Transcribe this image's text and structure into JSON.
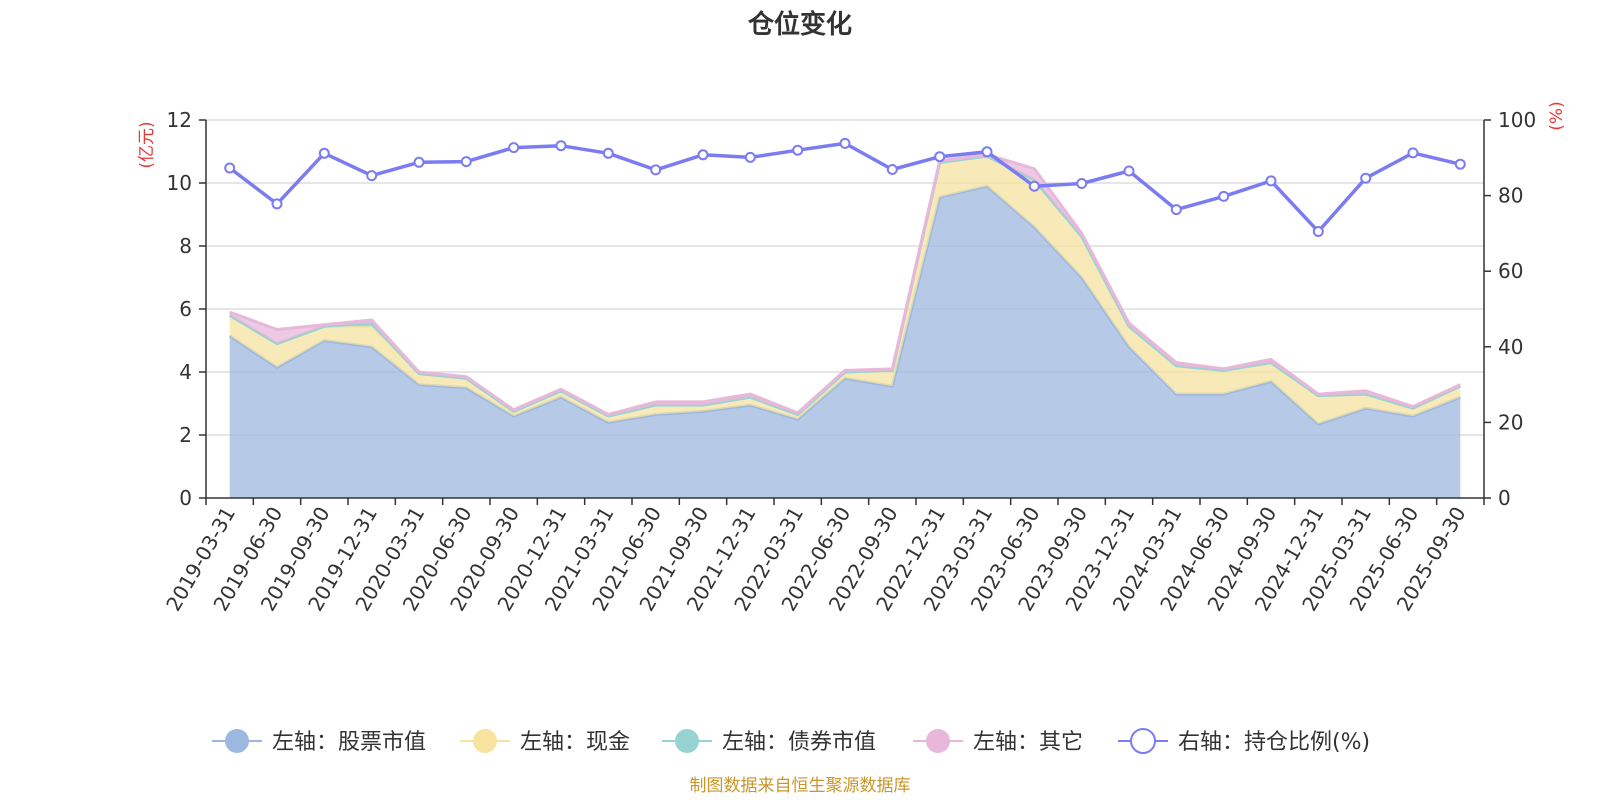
{
  "chart_data": {
    "type": "area+line",
    "title": "仓位变化",
    "source": "制图数据来自恒生聚源数据库",
    "y_left": {
      "unit": "(亿元)",
      "range": [
        0,
        12
      ],
      "ticks": [
        "0",
        "2",
        "4",
        "6",
        "8",
        "10",
        "12"
      ]
    },
    "y_right": {
      "unit": "(%)",
      "range": [
        0,
        100
      ],
      "ticks": [
        "0",
        "20",
        "40",
        "60",
        "80",
        "100"
      ]
    },
    "x_labels": [
      "2019-03-31",
      "2019-06-30",
      "2019-09-30",
      "2019-12-31",
      "2020-03-31",
      "2020-06-30",
      "2020-09-30",
      "2020-12-31",
      "2021-03-31",
      "2021-06-30",
      "2021-09-30",
      "2021-12-31",
      "2022-03-31",
      "2022-06-30",
      "2022-09-30",
      "2022-12-31",
      "2023-03-31",
      "2023-06-30",
      "2023-09-30",
      "2023-12-31",
      "2024-03-31",
      "2024-06-30",
      "2024-09-30",
      "2024-12-31",
      "2025-03-31",
      "2025-06-30",
      "2025-09-30"
    ],
    "series": [
      {
        "name": "左轴：股票市值",
        "axis": "left",
        "type": "area",
        "color": "#9db8e0",
        "values": [
          5.15,
          4.15,
          5.0,
          4.8,
          3.6,
          3.5,
          2.6,
          3.2,
          2.4,
          2.65,
          2.75,
          2.95,
          2.5,
          3.8,
          3.55,
          9.55,
          9.9,
          8.6,
          7.0,
          4.8,
          3.3,
          3.3,
          3.7,
          2.35,
          2.85,
          2.6,
          3.2
        ]
      },
      {
        "name": "左轴：现金",
        "axis": "left",
        "type": "area",
        "color": "#f6e3a0",
        "values": [
          0.65,
          0.75,
          0.45,
          0.65,
          0.35,
          0.3,
          0.15,
          0.2,
          0.2,
          0.3,
          0.2,
          0.25,
          0.15,
          0.2,
          0.5,
          1.1,
          0.95,
          1.5,
          1.3,
          0.65,
          0.9,
          0.75,
          0.6,
          0.9,
          0.45,
          0.25,
          0.35
        ]
      },
      {
        "name": "左轴：债券市值",
        "axis": "left",
        "type": "area",
        "color": "#97d3d3",
        "values": [
          0,
          0,
          0,
          0.1,
          0,
          0,
          0,
          0,
          0,
          0,
          0,
          0,
          0,
          0,
          0,
          0,
          0,
          0,
          0,
          0,
          0,
          0,
          0,
          0,
          0,
          0,
          0
        ]
      },
      {
        "name": "左轴：其它",
        "axis": "left",
        "type": "area",
        "color": "#e8b7da",
        "values": [
          0.1,
          0.45,
          0.05,
          0.1,
          0.05,
          0.05,
          0.05,
          0.05,
          0.05,
          0.1,
          0.1,
          0.1,
          0.05,
          0.05,
          0.05,
          0.05,
          0.05,
          0.35,
          0.1,
          0.1,
          0.1,
          0.05,
          0.1,
          0.05,
          0.1,
          0.05,
          0.05
        ]
      },
      {
        "name": "右轴：持仓比例(%)",
        "axis": "right",
        "type": "line",
        "color": "#7b7cf2",
        "values": [
          87.3,
          77.8,
          91.2,
          85.3,
          88.8,
          89.0,
          92.7,
          93.2,
          91.2,
          86.8,
          90.8,
          90.1,
          92.0,
          93.8,
          86.9,
          90.3,
          91.6,
          82.5,
          83.2,
          86.5,
          76.3,
          79.8,
          83.9,
          70.5,
          84.6,
          91.3,
          88.3
        ]
      }
    ]
  }
}
